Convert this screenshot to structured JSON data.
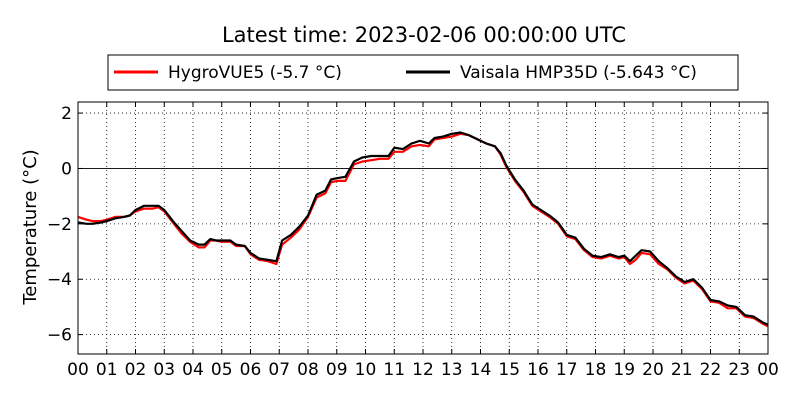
{
  "chart_data": {
    "type": "line",
    "title": "Latest time: 2023-02-06 00:00:00 UTC",
    "xlabel": "",
    "ylabel": "Temperature (°C)",
    "xlim": [
      0,
      24
    ],
    "ylim": [
      -6.7,
      2.4
    ],
    "x_ticks": [
      0,
      1,
      2,
      3,
      4,
      5,
      6,
      7,
      8,
      9,
      10,
      11,
      12,
      13,
      14,
      15,
      16,
      17,
      18,
      19,
      20,
      21,
      22,
      23,
      24
    ],
    "x_tick_labels": [
      "00",
      "01",
      "02",
      "03",
      "04",
      "05",
      "06",
      "07",
      "08",
      "09",
      "10",
      "11",
      "12",
      "13",
      "14",
      "15",
      "16",
      "17",
      "18",
      "19",
      "20",
      "21",
      "22",
      "23",
      "00"
    ],
    "y_ticks": [
      -6,
      -4,
      -2,
      0,
      2
    ],
    "y_tick_labels": [
      "−6",
      "−4",
      "−2",
      "0",
      "2"
    ],
    "grid": true,
    "zero_line": true,
    "legend_position": "top-center",
    "series": [
      {
        "name": "HygroVUE5 (-5.7 °C)",
        "color": "#ff0000",
        "points": [
          [
            0.0,
            -1.75
          ],
          [
            0.3,
            -1.85
          ],
          [
            0.5,
            -1.9
          ],
          [
            0.8,
            -1.9
          ],
          [
            1.0,
            -1.85
          ],
          [
            1.3,
            -1.75
          ],
          [
            1.6,
            -1.75
          ],
          [
            1.8,
            -1.7
          ],
          [
            2.0,
            -1.55
          ],
          [
            2.3,
            -1.45
          ],
          [
            2.6,
            -1.45
          ],
          [
            2.8,
            -1.4
          ],
          [
            3.0,
            -1.55
          ],
          [
            3.3,
            -1.95
          ],
          [
            3.6,
            -2.35
          ],
          [
            3.9,
            -2.65
          ],
          [
            4.2,
            -2.85
          ],
          [
            4.4,
            -2.85
          ],
          [
            4.6,
            -2.6
          ],
          [
            4.8,
            -2.6
          ],
          [
            5.0,
            -2.65
          ],
          [
            5.3,
            -2.65
          ],
          [
            5.5,
            -2.8
          ],
          [
            5.8,
            -2.8
          ],
          [
            6.0,
            -3.1
          ],
          [
            6.3,
            -3.3
          ],
          [
            6.6,
            -3.35
          ],
          [
            6.9,
            -3.45
          ],
          [
            7.1,
            -2.75
          ],
          [
            7.4,
            -2.5
          ],
          [
            7.7,
            -2.2
          ],
          [
            8.0,
            -1.75
          ],
          [
            8.3,
            -1.05
          ],
          [
            8.6,
            -0.9
          ],
          [
            8.8,
            -0.5
          ],
          [
            9.0,
            -0.45
          ],
          [
            9.3,
            -0.45
          ],
          [
            9.6,
            0.15
          ],
          [
            9.9,
            0.25
          ],
          [
            10.2,
            0.3
          ],
          [
            10.5,
            0.35
          ],
          [
            10.8,
            0.35
          ],
          [
            11.0,
            0.6
          ],
          [
            11.3,
            0.6
          ],
          [
            11.6,
            0.8
          ],
          [
            11.9,
            0.85
          ],
          [
            12.2,
            0.8
          ],
          [
            12.4,
            1.05
          ],
          [
            12.7,
            1.1
          ],
          [
            13.0,
            1.15
          ],
          [
            13.3,
            1.25
          ],
          [
            13.6,
            1.2
          ],
          [
            13.9,
            1.05
          ],
          [
            14.2,
            0.9
          ],
          [
            14.5,
            0.8
          ],
          [
            14.7,
            0.5
          ],
          [
            14.9,
            0.05
          ],
          [
            15.2,
            -0.45
          ],
          [
            15.5,
            -0.85
          ],
          [
            15.8,
            -1.35
          ],
          [
            16.1,
            -1.55
          ],
          [
            16.4,
            -1.75
          ],
          [
            16.7,
            -2.0
          ],
          [
            17.0,
            -2.45
          ],
          [
            17.3,
            -2.55
          ],
          [
            17.6,
            -2.95
          ],
          [
            17.9,
            -3.2
          ],
          [
            18.2,
            -3.25
          ],
          [
            18.5,
            -3.15
          ],
          [
            18.8,
            -3.25
          ],
          [
            19.0,
            -3.2
          ],
          [
            19.2,
            -3.45
          ],
          [
            19.4,
            -3.3
          ],
          [
            19.6,
            -3.05
          ],
          [
            19.9,
            -3.1
          ],
          [
            20.2,
            -3.45
          ],
          [
            20.5,
            -3.65
          ],
          [
            20.8,
            -3.95
          ],
          [
            21.1,
            -4.15
          ],
          [
            21.4,
            -4.05
          ],
          [
            21.7,
            -4.35
          ],
          [
            22.0,
            -4.8
          ],
          [
            22.3,
            -4.85
          ],
          [
            22.6,
            -5.05
          ],
          [
            22.9,
            -5.05
          ],
          [
            23.2,
            -5.35
          ],
          [
            23.5,
            -5.4
          ],
          [
            23.8,
            -5.6
          ],
          [
            24.0,
            -5.7
          ]
        ]
      },
      {
        "name": "Vaisala HMP35D (-5.643 °C)",
        "color": "#000000",
        "points": [
          [
            0.0,
            -1.95
          ],
          [
            0.3,
            -2.0
          ],
          [
            0.5,
            -2.0
          ],
          [
            0.8,
            -1.95
          ],
          [
            1.0,
            -1.9
          ],
          [
            1.3,
            -1.8
          ],
          [
            1.6,
            -1.75
          ],
          [
            1.8,
            -1.7
          ],
          [
            2.0,
            -1.5
          ],
          [
            2.3,
            -1.35
          ],
          [
            2.6,
            -1.35
          ],
          [
            2.8,
            -1.35
          ],
          [
            3.0,
            -1.5
          ],
          [
            3.3,
            -1.9
          ],
          [
            3.6,
            -2.25
          ],
          [
            3.9,
            -2.6
          ],
          [
            4.2,
            -2.75
          ],
          [
            4.4,
            -2.75
          ],
          [
            4.6,
            -2.55
          ],
          [
            4.8,
            -2.6
          ],
          [
            5.0,
            -2.6
          ],
          [
            5.3,
            -2.6
          ],
          [
            5.5,
            -2.75
          ],
          [
            5.8,
            -2.8
          ],
          [
            6.0,
            -3.05
          ],
          [
            6.3,
            -3.25
          ],
          [
            6.6,
            -3.3
          ],
          [
            6.9,
            -3.35
          ],
          [
            7.1,
            -2.6
          ],
          [
            7.4,
            -2.4
          ],
          [
            7.7,
            -2.1
          ],
          [
            8.0,
            -1.7
          ],
          [
            8.3,
            -0.95
          ],
          [
            8.6,
            -0.8
          ],
          [
            8.8,
            -0.4
          ],
          [
            9.0,
            -0.35
          ],
          [
            9.3,
            -0.3
          ],
          [
            9.6,
            0.25
          ],
          [
            9.9,
            0.4
          ],
          [
            10.2,
            0.45
          ],
          [
            10.5,
            0.45
          ],
          [
            10.8,
            0.45
          ],
          [
            11.0,
            0.75
          ],
          [
            11.3,
            0.7
          ],
          [
            11.6,
            0.9
          ],
          [
            11.9,
            1.0
          ],
          [
            12.2,
            0.9
          ],
          [
            12.4,
            1.1
          ],
          [
            12.7,
            1.15
          ],
          [
            13.0,
            1.25
          ],
          [
            13.3,
            1.3
          ],
          [
            13.6,
            1.2
          ],
          [
            13.9,
            1.05
          ],
          [
            14.2,
            0.9
          ],
          [
            14.5,
            0.8
          ],
          [
            14.7,
            0.55
          ],
          [
            14.9,
            0.1
          ],
          [
            15.2,
            -0.4
          ],
          [
            15.5,
            -0.8
          ],
          [
            15.8,
            -1.3
          ],
          [
            16.1,
            -1.5
          ],
          [
            16.4,
            -1.7
          ],
          [
            16.7,
            -1.95
          ],
          [
            17.0,
            -2.4
          ],
          [
            17.3,
            -2.5
          ],
          [
            17.6,
            -2.9
          ],
          [
            17.9,
            -3.15
          ],
          [
            18.2,
            -3.2
          ],
          [
            18.5,
            -3.1
          ],
          [
            18.8,
            -3.2
          ],
          [
            19.0,
            -3.15
          ],
          [
            19.2,
            -3.35
          ],
          [
            19.4,
            -3.15
          ],
          [
            19.6,
            -2.95
          ],
          [
            19.9,
            -3.0
          ],
          [
            20.2,
            -3.35
          ],
          [
            20.5,
            -3.6
          ],
          [
            20.8,
            -3.9
          ],
          [
            21.1,
            -4.1
          ],
          [
            21.4,
            -4.0
          ],
          [
            21.7,
            -4.3
          ],
          [
            22.0,
            -4.75
          ],
          [
            22.3,
            -4.8
          ],
          [
            22.6,
            -4.95
          ],
          [
            22.9,
            -5.0
          ],
          [
            23.2,
            -5.3
          ],
          [
            23.5,
            -5.35
          ],
          [
            23.8,
            -5.55
          ],
          [
            24.0,
            -5.643
          ]
        ]
      }
    ]
  }
}
